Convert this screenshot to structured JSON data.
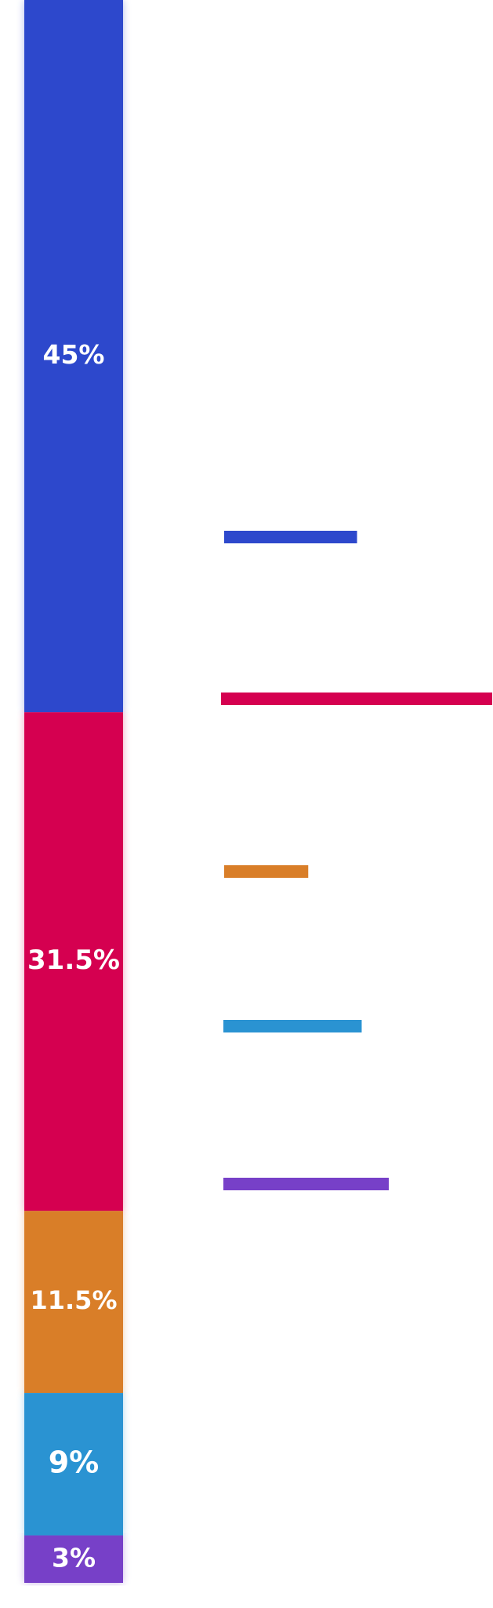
{
  "chart_data": {
    "type": "bar",
    "title": "",
    "xlabel": "",
    "ylabel": "",
    "categories": [
      "45%",
      "31.5%",
      "11.5%",
      "9%",
      "3%"
    ],
    "values": [
      45,
      31.5,
      11.5,
      9,
      3
    ],
    "labels": [
      "45%",
      "31.5%",
      "11.5%",
      "9%",
      "3%"
    ],
    "colors": [
      "#2d48cc",
      "#d50050",
      "#d97e28",
      "#2a93d2",
      "#7740c8"
    ],
    "unit": "%",
    "stacked": true,
    "orientation": "vertical-stack",
    "legend": "none",
    "grid": false,
    "side_markers": {
      "type": "horizontal-line-marks",
      "colors": [
        "#2d48cc",
        "#d50050",
        "#d97e28",
        "#2a93d2",
        "#7740c8"
      ],
      "relative_lengths": [
        0.49,
        1.0,
        0.31,
        0.51,
        0.61
      ]
    }
  }
}
